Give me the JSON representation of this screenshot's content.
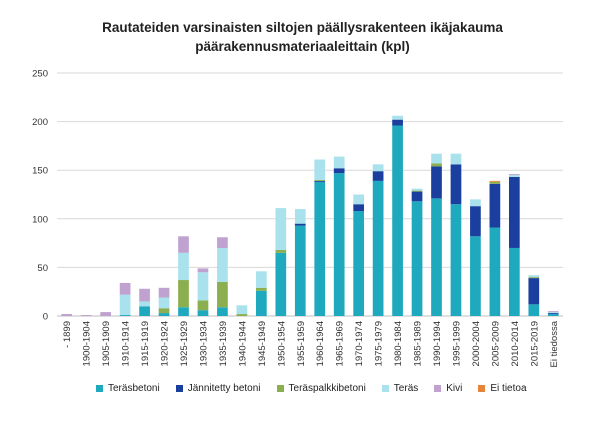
{
  "chart_data": {
    "type": "bar",
    "stacked": true,
    "title_lines": [
      "Rautateiden varsinaisten siltojen päällysrakenteen ikäjakauma",
      "päärakennusmateriaaleittain (kpl)"
    ],
    "xlabel": "",
    "ylabel": "",
    "ylim": [
      0,
      250
    ],
    "yticks": [
      "0",
      "50",
      "100",
      "150",
      "200",
      "250"
    ],
    "legend_position": "bottom",
    "categories": [
      "- 1899",
      "1900-1904",
      "1905-1909",
      "1910-1914",
      "1915-1919",
      "1920-1924",
      "1925-1929",
      "1930-1934",
      "1935-1939",
      "1940-1944",
      "1945-1949",
      "1950-1954",
      "1955-1959",
      "1960-1964",
      "1965-1969",
      "1970-1974",
      "1975-1979",
      "1980-1984",
      "1985-1989",
      "1990-1994",
      "1995-1999",
      "2000-2004",
      "2005-2009",
      "2010-2014",
      "2015-2019",
      "Ei tiedossa"
    ],
    "series": [
      {
        "name": "Teräsbetoni",
        "color": "#1FA9BE",
        "values": [
          0,
          0,
          0,
          1,
          10,
          3,
          9,
          6,
          9,
          0,
          26,
          65,
          93,
          138,
          147,
          108,
          139,
          196,
          118,
          121,
          115,
          82,
          91,
          70,
          12,
          2
        ]
      },
      {
        "name": "Jännitetty betoni",
        "color": "#1A3F9E",
        "values": [
          0,
          0,
          0,
          0,
          0,
          0,
          0,
          0,
          0,
          0,
          0,
          0,
          2,
          1,
          5,
          7,
          10,
          6,
          10,
          33,
          41,
          31,
          45,
          73,
          27,
          1
        ]
      },
      {
        "name": "Teräspalkkibetoni",
        "color": "#8BAF4F",
        "values": [
          0,
          0,
          0,
          0,
          0,
          5,
          28,
          10,
          26,
          2,
          3,
          3,
          0,
          1,
          0,
          0,
          0,
          0,
          1,
          3,
          0,
          0,
          2,
          0,
          1,
          0
        ]
      },
      {
        "name": "Teräs",
        "color": "#A9E1EC",
        "values": [
          0,
          0,
          0,
          21,
          5,
          11,
          28,
          29,
          35,
          9,
          17,
          43,
          15,
          21,
          12,
          10,
          7,
          4,
          2,
          10,
          11,
          7,
          0,
          2,
          2,
          1
        ]
      },
      {
        "name": "Kivi",
        "color": "#BFA2CF",
        "values": [
          2,
          1,
          4,
          12,
          13,
          10,
          17,
          4,
          11,
          0,
          0,
          0,
          0,
          0,
          0,
          0,
          0,
          0,
          0,
          0,
          0,
          0,
          0,
          1,
          0,
          1
        ]
      },
      {
        "name": "Ei tietoa",
        "color": "#E8843A",
        "values": [
          0,
          0,
          0,
          0,
          0,
          0,
          0,
          0,
          0,
          0,
          0,
          0,
          0,
          0,
          0,
          0,
          0,
          0,
          0,
          0,
          0,
          0,
          1,
          0,
          0,
          0
        ]
      }
    ]
  }
}
